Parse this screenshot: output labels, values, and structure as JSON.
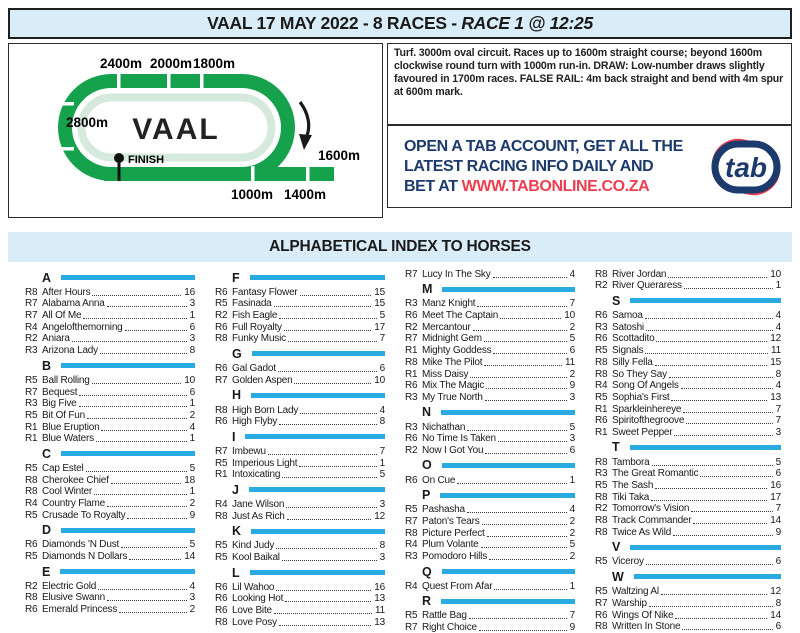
{
  "header": {
    "title": "VAAL 17 MAY 2022 - 8 RACES - ",
    "race_title": "RACE 1 @ 12:25"
  },
  "track_map": {
    "name": "VAAL",
    "finish_label": "FINISH",
    "top_labels": [
      "2400m",
      "2000m",
      "1800m"
    ],
    "left_label": "2800m",
    "bottom_labels": [
      "1000m",
      "1400m"
    ],
    "right_label": "1600m"
  },
  "course_info": "Turf. 3000m oval circuit. Races up to 1600m straight course; beyond 1600m clockwise round turn with 1000m run-in. DRAW: Low-number draws slightly favoured in 1700m races. FALSE RAIL: 4m back straight and bend with 4m spur at 600m mark.",
  "ad": {
    "line1": "OPEN A TAB ACCOUNT, GET ALL THE",
    "line2": "LATEST RACING INFO DAILY AND",
    "line3_prefix": "BET AT ",
    "line3_url": "WWW.TABONLINE.CO.ZA",
    "logo_text": "tab"
  },
  "index": {
    "title": "ALPHABETICAL INDEX TO HORSES",
    "columns": [
      [
        {
          "letter": "A",
          "entries": [
            [
              "R8",
              "After Hours",
              "16"
            ],
            [
              "R7",
              "Alabama Anna",
              "3"
            ],
            [
              "R7",
              "All Of Me",
              "1"
            ],
            [
              "R4",
              "Angelofthemorning",
              "6"
            ],
            [
              "R2",
              "Aniara",
              "3"
            ],
            [
              "R3",
              "Arizona Lady",
              "8"
            ]
          ]
        },
        {
          "letter": "B",
          "entries": [
            [
              "R5",
              "Ball Rolling",
              "10"
            ],
            [
              "R7",
              "Bequest",
              "6"
            ],
            [
              "R3",
              "Big Five",
              "1"
            ],
            [
              "R5",
              "Bit Of Fun",
              "2"
            ],
            [
              "R1",
              "Blue Eruption",
              "4"
            ],
            [
              "R1",
              "Blue Waters",
              "1"
            ]
          ]
        },
        {
          "letter": "C",
          "entries": [
            [
              "R5",
              "Cap Estel",
              "5"
            ],
            [
              "R8",
              "Cherokee Chief",
              "18"
            ],
            [
              "R8",
              "Cool Winter",
              "1"
            ],
            [
              "R4",
              "Country Flame",
              "2"
            ],
            [
              "R5",
              "Crusade To Royalty",
              "9"
            ]
          ]
        },
        {
          "letter": "D",
          "entries": [
            [
              "R6",
              "Diamonds 'N Dust",
              "5"
            ],
            [
              "R5",
              "Diamonds N Dollars",
              "14"
            ]
          ]
        },
        {
          "letter": "E",
          "entries": [
            [
              "R2",
              "Electric Gold",
              "4"
            ],
            [
              "R8",
              "Elusive Swann",
              "3"
            ],
            [
              "R6",
              "Emerald Princess",
              "2"
            ]
          ]
        }
      ],
      [
        {
          "letter": "F",
          "entries": [
            [
              "R6",
              "Fantasy Flower",
              "15"
            ],
            [
              "R5",
              "Fasinada",
              "15"
            ],
            [
              "R2",
              "Fish Eagle",
              "5"
            ],
            [
              "R6",
              "Full Royalty",
              "17"
            ],
            [
              "R8",
              "Funky Music",
              "7"
            ]
          ]
        },
        {
          "letter": "G",
          "entries": [
            [
              "R6",
              "Gal Gadot",
              "6"
            ],
            [
              "R7",
              "Golden Aspen",
              "10"
            ]
          ]
        },
        {
          "letter": "H",
          "entries": [
            [
              "R8",
              "High Born Lady",
              "4"
            ],
            [
              "R6",
              "High Flyby",
              "8"
            ]
          ]
        },
        {
          "letter": "I",
          "entries": [
            [
              "R7",
              "Imbewu",
              "7"
            ],
            [
              "R5",
              "Imperious Light",
              "1"
            ],
            [
              "R1",
              "Intoxicating",
              "5"
            ]
          ]
        },
        {
          "letter": "J",
          "entries": [
            [
              "R4",
              "Jane Wilson",
              "3"
            ],
            [
              "R8",
              "Just As Rich",
              "12"
            ]
          ]
        },
        {
          "letter": "K",
          "entries": [
            [
              "R5",
              "Kind Judy",
              "8"
            ],
            [
              "R5",
              "Kool Baikal",
              "3"
            ]
          ]
        },
        {
          "letter": "L",
          "entries": [
            [
              "R6",
              "Lil Wahoo",
              "16"
            ],
            [
              "R6",
              "Looking Hot",
              "13"
            ],
            [
              "R6",
              "Love Bite",
              "11"
            ],
            [
              "R8",
              "Love Posy",
              "13"
            ]
          ]
        }
      ],
      [
        {
          "letter": "",
          "entries": [
            [
              "R7",
              "Lucy In The Sky",
              "4"
            ]
          ]
        },
        {
          "letter": "M",
          "entries": [
            [
              "R3",
              "Manz Knight",
              "7"
            ],
            [
              "R6",
              "Meet The Captain",
              "10"
            ],
            [
              "R2",
              "Mercantour",
              "2"
            ],
            [
              "R7",
              "Midnight Gem",
              "5"
            ],
            [
              "R1",
              "Mighty Goddess",
              "6"
            ],
            [
              "R8",
              "Mike The Pilot",
              "11"
            ],
            [
              "R1",
              "Miss Daisy",
              "2"
            ],
            [
              "R6",
              "Mix The Magic",
              "9"
            ],
            [
              "R3",
              "My True North",
              "3"
            ]
          ]
        },
        {
          "letter": "N",
          "entries": [
            [
              "R3",
              "Nichathan",
              "5"
            ],
            [
              "R6",
              "No Time Is Taken",
              "3"
            ],
            [
              "R2",
              "Now I Got You",
              "6"
            ]
          ]
        },
        {
          "letter": "O",
          "entries": [
            [
              "R6",
              "On Cue",
              "1"
            ]
          ]
        },
        {
          "letter": "P",
          "entries": [
            [
              "R5",
              "Pashasha",
              "4"
            ],
            [
              "R7",
              "Paton's Tears",
              "2"
            ],
            [
              "R8",
              "Picture Perfect",
              "2"
            ],
            [
              "R4",
              "Plum Volante",
              "5"
            ],
            [
              "R3",
              "Pomodoro Hills",
              "2"
            ]
          ]
        },
        {
          "letter": "Q",
          "entries": [
            [
              "R4",
              "Quest From Afar",
              "1"
            ]
          ]
        },
        {
          "letter": "R",
          "entries": [
            [
              "R5",
              "Rattle Bag",
              "7"
            ],
            [
              "R7",
              "Right Choice",
              "9"
            ]
          ]
        }
      ],
      [
        {
          "letter": "",
          "entries": [
            [
              "R8",
              "River Jordan",
              "10"
            ],
            [
              "R2",
              "River Queraress",
              "1"
            ]
          ]
        },
        {
          "letter": "S",
          "entries": [
            [
              "R6",
              "Samoa",
              "4"
            ],
            [
              "R3",
              "Satoshi",
              "4"
            ],
            [
              "R6",
              "Scottadito",
              "12"
            ],
            [
              "R5",
              "Signals",
              "11"
            ],
            [
              "R8",
              "Silly Fella",
              "15"
            ],
            [
              "R8",
              "So They Say",
              "8"
            ],
            [
              "R4",
              "Song Of Angels",
              "4"
            ],
            [
              "R5",
              "Sophia's First",
              "13"
            ],
            [
              "R1",
              "Sparkleinhereye",
              "7"
            ],
            [
              "R6",
              "Spiritofthegroove",
              "7"
            ],
            [
              "R1",
              "Sweet Pepper",
              "3"
            ]
          ]
        },
        {
          "letter": "T",
          "entries": [
            [
              "R8",
              "Tambora",
              "5"
            ],
            [
              "R3",
              "The Great Romantic",
              "6"
            ],
            [
              "R5",
              "The Sash",
              "16"
            ],
            [
              "R8",
              "Tiki Taka",
              "17"
            ],
            [
              "R2",
              "Tomorrow's Vision",
              "7"
            ],
            [
              "R8",
              "Track Commander",
              "14"
            ],
            [
              "R8",
              "Twice As Wild",
              "9"
            ]
          ]
        },
        {
          "letter": "V",
          "entries": [
            [
              "R5",
              "Viceroy",
              "6"
            ]
          ]
        },
        {
          "letter": "W",
          "entries": [
            [
              "R5",
              "Waltzing Al",
              "12"
            ],
            [
              "R7",
              "Warship",
              "8"
            ],
            [
              "R6",
              "Wings Of Nike",
              "14"
            ],
            [
              "R8",
              "Written In Stone",
              "6"
            ]
          ]
        }
      ]
    ]
  },
  "colors": {
    "banner_blue": "#d8edf8",
    "accent_cyan": "#29abe2",
    "track_green": "#16a24c",
    "track_light_green": "#d5e9dc",
    "navy": "#1d3a6d",
    "red": "#ee3e50"
  }
}
